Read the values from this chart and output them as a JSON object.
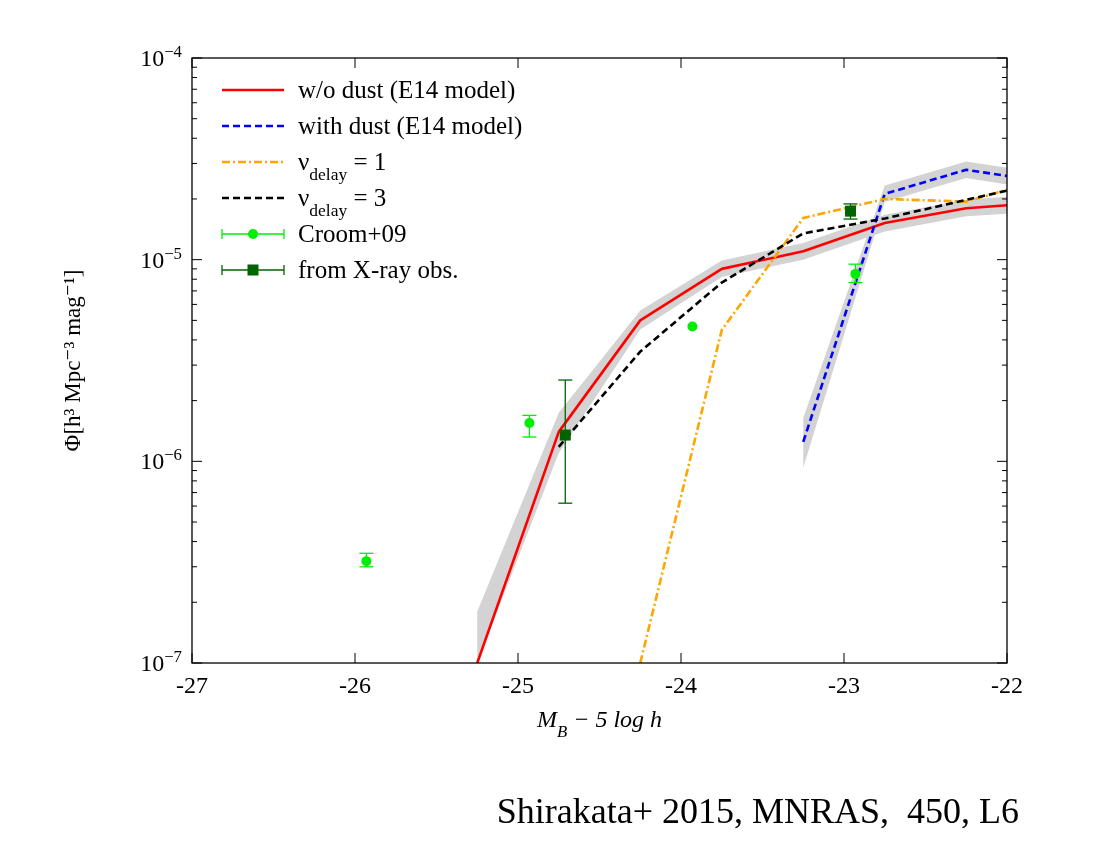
{
  "chart_data": {
    "type": "line",
    "xlabel": "M$_{B}$ − 5 log h",
    "ylabel": "Φ[h³ Mpc⁻³ mag⁻¹]",
    "log": "y",
    "xlim": [
      -27,
      -22
    ],
    "xticks": [
      -27,
      -26,
      -25,
      -24,
      -23,
      -22
    ],
    "ylim": [
      1e-07,
      0.0001
    ],
    "yticks": [
      {
        "value": 1e-07,
        "label": "10$^{−7}$"
      },
      {
        "value": 2e-07,
        "label": null
      },
      {
        "value": 3e-07,
        "label": null
      },
      {
        "value": 4e-07,
        "label": null
      },
      {
        "value": 5e-07,
        "label": null
      },
      {
        "value": 6e-07,
        "label": null
      },
      {
        "value": 7e-07,
        "label": null
      },
      {
        "value": 8e-07,
        "label": null
      },
      {
        "value": 9e-07,
        "label": null
      },
      {
        "value": 1e-06,
        "label": "10$^{−6}$"
      },
      {
        "value": 2e-06,
        "label": null
      },
      {
        "value": 3e-06,
        "label": null
      },
      {
        "value": 4e-06,
        "label": null
      },
      {
        "value": 5e-06,
        "label": null
      },
      {
        "value": 6e-06,
        "label": null
      },
      {
        "value": 7e-06,
        "label": null
      },
      {
        "value": 8e-06,
        "label": null
      },
      {
        "value": 9e-06,
        "label": null
      },
      {
        "value": 1e-05,
        "label": "10$^{−5}$"
      },
      {
        "value": 2e-05,
        "label": null
      },
      {
        "value": 3e-05,
        "label": null
      },
      {
        "value": 4e-05,
        "label": null
      },
      {
        "value": 5e-05,
        "label": null
      },
      {
        "value": 6e-05,
        "label": null
      },
      {
        "value": 7e-05,
        "label": null
      },
      {
        "value": 8e-05,
        "label": null
      },
      {
        "value": 9e-05,
        "label": null
      },
      {
        "value": 0.0001,
        "label": "10$^{−4}$"
      }
    ],
    "grid": false,
    "legend": "top left",
    "series": [
      {
        "name": "w/o dust (E14 model)",
        "line_style": "solid",
        "color": "#ff0000",
        "x": [
          -25.25,
          -24.75,
          -24.25,
          -23.75,
          -23.25,
          -22.75,
          -22.25,
          -22
        ],
        "values": [
          1e-07,
          1.4e-06,
          5e-06,
          9e-06,
          1.1e-05,
          1.52e-05,
          1.8e-05,
          1.86e-05
        ],
        "lower": [
          1e-07,
          1.1e-06,
          4.5e-06,
          8.2e-06,
          1e-05,
          1.38e-05,
          1.64e-05,
          1.69e-05
        ],
        "upper": [
          1.8e-07,
          1.74e-06,
          5.6e-06,
          9.9e-06,
          1.21e-05,
          1.67e-05,
          1.98e-05,
          2.05e-05
        ]
      },
      {
        "name": "with dust (E14 model)",
        "line_style": "dashed",
        "color": "#0000ff",
        "x": [
          -23.25,
          -22.75,
          -22.25,
          -22
        ],
        "values": [
          1.25e-06,
          2.12e-05,
          2.79e-05,
          2.6e-05
        ],
        "lower": [
          9.3e-07,
          1.93e-05,
          2.54e-05,
          2.36e-05
        ],
        "upper": [
          1.64e-06,
          2.33e-05,
          3.07e-05,
          2.86e-05
        ]
      },
      {
        "name": "ν$_{delay}$ = 1",
        "line_style": "dashdot",
        "color": "#ffa500",
        "x": [
          -24.25,
          -23.75,
          -23.25,
          -22.75,
          -22.25,
          -22
        ],
        "values": [
          1e-07,
          4.48e-06,
          1.61e-05,
          2e-05,
          1.94e-05,
          2.22e-05
        ]
      },
      {
        "name": "ν$_{delay}$ = 3",
        "line_style": "dashed",
        "color": "#000000",
        "x": [
          -24.75,
          -24.25,
          -23.75,
          -23.25,
          -22.75,
          -22.25,
          -22
        ],
        "values": [
          1.18e-06,
          3.5e-06,
          7.7e-06,
          1.35e-05,
          1.6e-05,
          1.98e-05,
          2.2e-05
        ]
      },
      {
        "name": "Croom+09",
        "type": "scatter",
        "marker": "circle",
        "color": "#00ee00",
        "x": [
          -25.93,
          -24.93,
          -23.93,
          -22.93
        ],
        "values": [
          3.2e-07,
          1.55e-06,
          4.66e-06,
          8.5e-06
        ],
        "errors": [
          [
            3e-07,
            3.5e-07
          ],
          [
            1.32e-06,
            1.69e-06
          ],
          null,
          [
            7.7e-06,
            9.5e-06
          ]
        ]
      },
      {
        "name": "from X-ray obs.",
        "type": "scatter",
        "marker": "square",
        "color": "#006400",
        "x": [
          -24.71,
          -22.96
        ],
        "values": [
          1.35e-06,
          1.74e-05
        ],
        "errors": [
          [
            6.2e-07,
            2.53e-06
          ],
          [
            1.59e-05,
            1.89e-05
          ]
        ]
      }
    ],
    "annotations": [
      "Shirakata+ 2015, MNRAS,  450, L6"
    ]
  }
}
